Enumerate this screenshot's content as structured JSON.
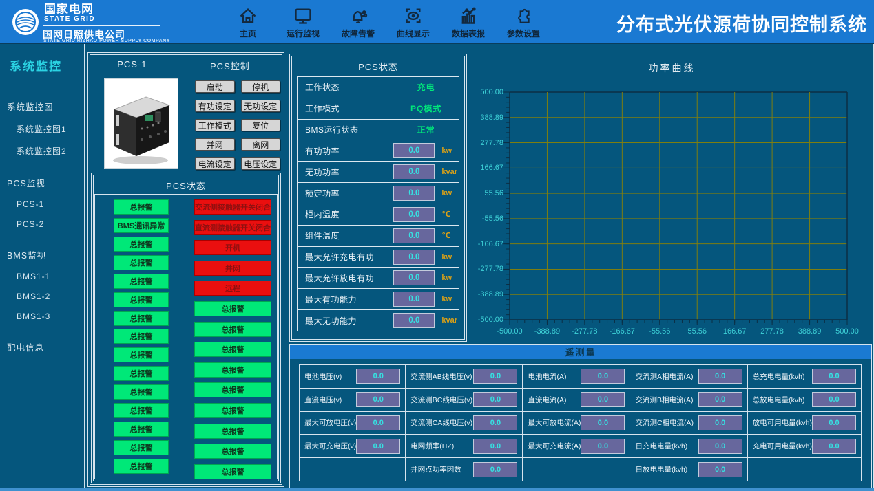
{
  "colors": {
    "header_blue": "#1a79d2",
    "background": "#05567d",
    "panel_border": "#d6e4ee",
    "alarm_green": "#00e878",
    "alarm_red": "#ea0f0f",
    "value_box_bg": "#67679d",
    "value_text_cyan": "#35e2e2",
    "unit_gold": "#d8a018",
    "grid_olive": "#7e7e10",
    "axis_tick_cyan": "#3ed2d8",
    "status_green_text": "#00e87a"
  },
  "header": {
    "logo": {
      "brand_cn": "国家电网",
      "brand_en": "STATE GRID",
      "company": "国网日照供电公司",
      "company_en": "STATE GRID RIZHAO POWER SUPPLY COMPANY"
    },
    "nav": [
      {
        "id": "home",
        "label": "主页",
        "icon": "home-icon"
      },
      {
        "id": "monitor",
        "label": "运行监视",
        "icon": "monitor-icon"
      },
      {
        "id": "alarm",
        "label": "故障告警",
        "icon": "alarm-bell-icon"
      },
      {
        "id": "curve",
        "label": "曲线显示",
        "icon": "eye-icon"
      },
      {
        "id": "report",
        "label": "数据表报",
        "icon": "bar-chart-icon"
      },
      {
        "id": "settings",
        "label": "参数设置",
        "icon": "puzzle-icon"
      }
    ],
    "title": "分布式光伏源荷协同控制系统"
  },
  "sidebar": {
    "title": "系统监控",
    "items": [
      {
        "label": "系统监控图",
        "level": 0
      },
      {
        "label": "系统监控图1",
        "level": 1
      },
      {
        "label": "系统监控图2",
        "level": 1
      },
      {
        "label": "PCS监视",
        "level": 0
      },
      {
        "label": "PCS-1",
        "level": 1
      },
      {
        "label": "PCS-2",
        "level": 1
      },
      {
        "label": "BMS监视",
        "level": 0
      },
      {
        "label": "BMS1-1",
        "level": 1
      },
      {
        "label": "BMS1-2",
        "level": 1
      },
      {
        "label": "BMS1-3",
        "level": 1
      },
      {
        "label": "配电信息",
        "level": 0
      }
    ]
  },
  "pcs": {
    "device_label": "PCS-1",
    "control_title": "PCS控制",
    "controls": [
      "启动",
      "停机",
      "有功设定",
      "无功设定",
      "工作模式",
      "复位",
      "并网",
      "离网",
      "电流设定",
      "电压设定"
    ],
    "status_title": "PCS状态",
    "alarms_left": [
      {
        "label": "总报警",
        "state": "green"
      },
      {
        "label": "BMS通讯异常",
        "state": "green"
      },
      {
        "label": "总报警",
        "state": "green"
      },
      {
        "label": "总报警",
        "state": "green"
      },
      {
        "label": "总报警",
        "state": "green"
      },
      {
        "label": "总报警",
        "state": "green"
      },
      {
        "label": "总报警",
        "state": "green"
      },
      {
        "label": "总报警",
        "state": "green"
      },
      {
        "label": "总报警",
        "state": "green"
      },
      {
        "label": "总报警",
        "state": "green"
      },
      {
        "label": "总报警",
        "state": "green"
      },
      {
        "label": "总报警",
        "state": "green"
      },
      {
        "label": "总报警",
        "state": "green"
      },
      {
        "label": "总报警",
        "state": "green"
      },
      {
        "label": "总报警",
        "state": "green"
      }
    ],
    "alarms_right": [
      {
        "label": "交流侧接触器开关闭合",
        "state": "red"
      },
      {
        "label": "直流测接触器开关闭合",
        "state": "red"
      },
      {
        "label": "开机",
        "state": "red"
      },
      {
        "label": "并网",
        "state": "red"
      },
      {
        "label": "远程",
        "state": "red"
      },
      {
        "label": "总报警",
        "state": "green"
      },
      {
        "label": "总报警",
        "state": "green"
      },
      {
        "label": "总报警",
        "state": "green"
      },
      {
        "label": "总报警",
        "state": "green"
      },
      {
        "label": "总报警",
        "state": "green"
      },
      {
        "label": "总报警",
        "state": "green"
      },
      {
        "label": "总报警",
        "state": "green"
      },
      {
        "label": "总报警",
        "state": "green"
      },
      {
        "label": "总报警",
        "state": "green"
      }
    ]
  },
  "status_table": {
    "title": "PCS状态",
    "rows": [
      {
        "label": "工作状态",
        "value": "充电"
      },
      {
        "label": "工作模式",
        "value": "PQ模式"
      },
      {
        "label": "BMS运行状态",
        "value": "正常"
      },
      {
        "label": "有功功率",
        "value": "0.0",
        "unit": "kw"
      },
      {
        "label": "无功功率",
        "value": "0.0",
        "unit": "kvar"
      },
      {
        "label": "额定功率",
        "value": "0.0",
        "unit": "kw"
      },
      {
        "label": "柜内温度",
        "value": "0.0",
        "unit": "℃"
      },
      {
        "label": "组件温度",
        "value": "0.0",
        "unit": "℃"
      },
      {
        "label": "最大允许充电有功",
        "value": "0.0",
        "unit": "kw"
      },
      {
        "label": "最大允许放电有功",
        "value": "0.0",
        "unit": "kw"
      },
      {
        "label": "最大有功能力",
        "value": "0.0",
        "unit": "kw"
      },
      {
        "label": "最大无功能力",
        "value": "0.0",
        "unit": "kvar"
      }
    ]
  },
  "chart_data": {
    "type": "line",
    "title": "功率曲线",
    "series": [],
    "note": "empty plot - no data series drawn",
    "xlim": [
      -500,
      500
    ],
    "ylim": [
      -500,
      500
    ],
    "x_divisions": 9,
    "y_divisions": 9,
    "grid": true,
    "x_ticks": [
      "-500.00",
      "-388.89",
      "-277.78",
      "-166.67",
      "-55.56",
      "55.56",
      "166.67",
      "277.78",
      "388.89",
      "500.00"
    ],
    "y_ticks": [
      "500.00",
      "388.89",
      "277.78",
      "166.67",
      "55.56",
      "-55.56",
      "-166.67",
      "-277.78",
      "-388.89",
      "-500.00"
    ]
  },
  "telemetry": {
    "title": "遥测量",
    "columns": [
      [
        {
          "label": "电池电压(v)",
          "value": "0.0"
        },
        {
          "label": "直流电压(v)",
          "value": "0.0"
        },
        {
          "label": "最大可放电压(v)",
          "value": "0.0"
        },
        {
          "label": "最大可充电压(v)",
          "value": "0.0"
        },
        null
      ],
      [
        {
          "label": "交流侧AB线电压(v)",
          "value": "0.0"
        },
        {
          "label": "交流测BC线电压(v)",
          "value": "0.0"
        },
        {
          "label": "交流测CA线电压(v)",
          "value": "0.0"
        },
        {
          "label": "电网频率(HZ)",
          "value": "0.0"
        },
        {
          "label": "并网点功率因数",
          "value": "0.0"
        }
      ],
      [
        {
          "label": "电池电流(A)",
          "value": "0.0"
        },
        {
          "label": "直流电流(A)",
          "value": "0.0"
        },
        {
          "label": "最大可放电流(A)",
          "value": "0.0"
        },
        {
          "label": "最大可充电流(A)",
          "value": "0.0"
        },
        null
      ],
      [
        {
          "label": "交流测A相电流(A)",
          "value": "0.0"
        },
        {
          "label": "交流测B相电流(A)",
          "value": "0.0"
        },
        {
          "label": "交流测C相电流(A)",
          "value": "0.0"
        },
        {
          "label": "日充电电量(kvh)",
          "value": "0.0"
        },
        {
          "label": "日放电电量(kvh)",
          "value": "0.0"
        }
      ],
      [
        {
          "label": "总充电电量(kvh)",
          "value": "0.0"
        },
        {
          "label": "总放电电量(kvh)",
          "value": "0.0"
        },
        {
          "label": "放电可用电量(kvh)",
          "value": "0.0"
        },
        {
          "label": "充电可用电量(kvh)",
          "value": "0.0"
        },
        null
      ]
    ]
  }
}
